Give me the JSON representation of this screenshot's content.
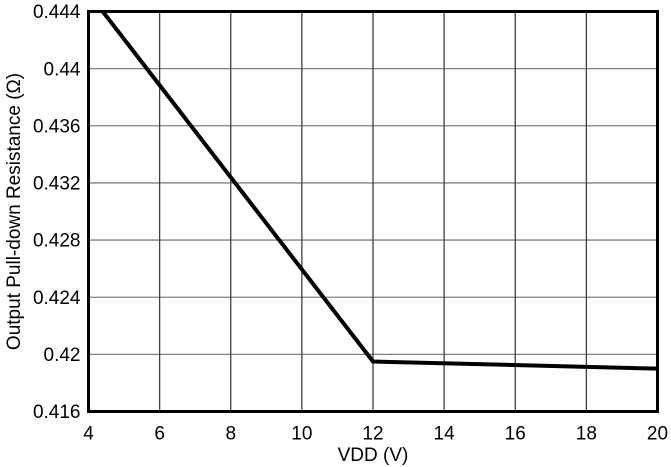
{
  "chart_data": {
    "type": "line",
    "title": "",
    "xlabel": "VDD (V)",
    "ylabel": "Output Pull-down Resistance (Ω)",
    "xlim": [
      4,
      20
    ],
    "ylim": [
      0.416,
      0.444
    ],
    "x_ticks": [
      4,
      6,
      8,
      10,
      12,
      14,
      16,
      18,
      20
    ],
    "x_tick_labels": [
      "4",
      "6",
      "8",
      "10",
      "12",
      "14",
      "16",
      "18",
      "20"
    ],
    "y_ticks": [
      0.416,
      0.42,
      0.424,
      0.428,
      0.432,
      0.436,
      0.44,
      0.444
    ],
    "y_tick_labels": [
      "0.416",
      "0.42",
      "0.424",
      "0.428",
      "0.432",
      "0.436",
      "0.44",
      "0.444"
    ],
    "grid": true,
    "legend": "none",
    "series": [
      {
        "name": "Output Pull-down Resistance",
        "x": [
          4.4,
          12,
          20
        ],
        "y": [
          0.444,
          0.4195,
          0.419
        ],
        "color": "#000000",
        "line_width": 4
      }
    ],
    "colors": {
      "h_grid": "#808080",
      "v_grid": "#404040",
      "border": "#000000",
      "text": "#000000",
      "background": "#ffffff"
    }
  }
}
